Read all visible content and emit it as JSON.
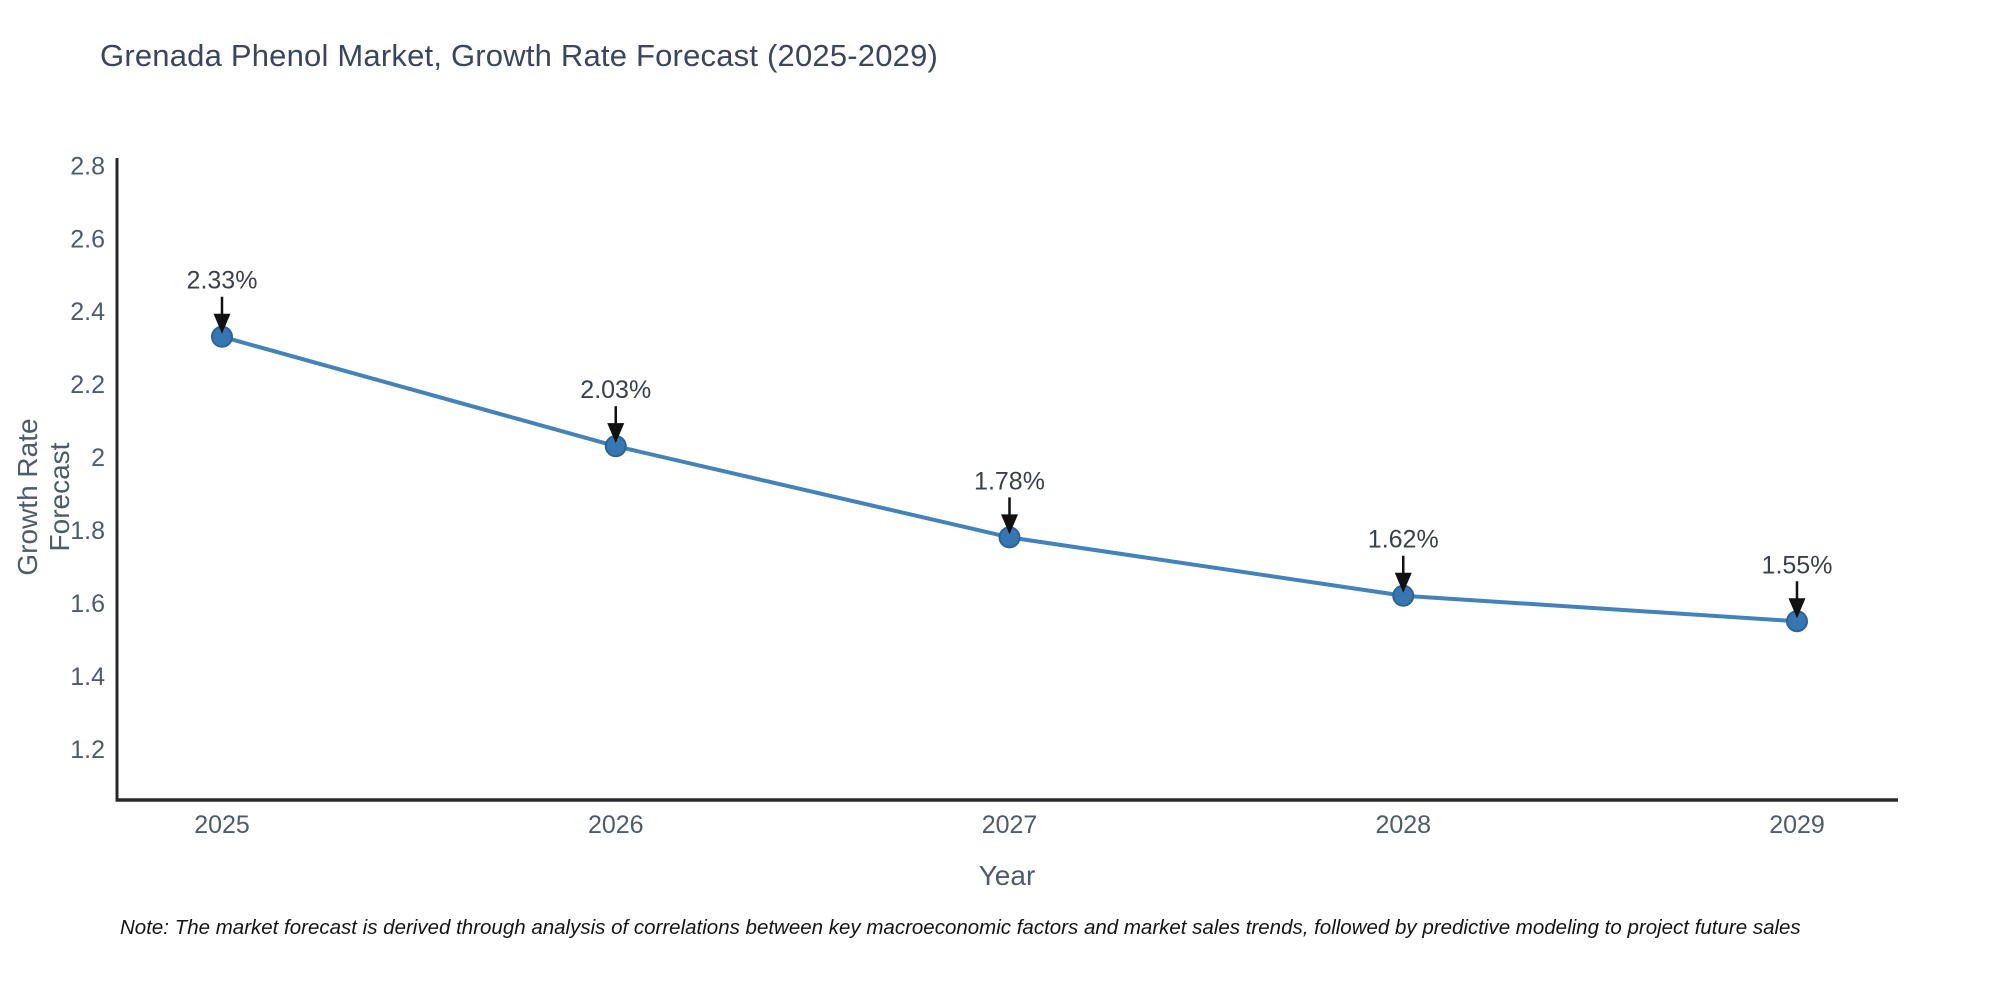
{
  "title": "Grenada Phenol Market, Growth Rate Forecast (2025-2029)",
  "note": "Note: The market forecast is derived through analysis of correlations between key macroeconomic factors and market sales trends, followed by predictive modeling to project future sales",
  "chart_data": {
    "type": "line",
    "title": "Grenada Phenol Market, Growth Rate Forecast (2025-2029)",
    "xlabel": "Year",
    "ylabel": "Growth Rate Forecast",
    "categories": [
      "2025",
      "2026",
      "2027",
      "2028",
      "2029"
    ],
    "values": [
      2.33,
      2.03,
      1.78,
      1.62,
      1.55
    ],
    "point_labels": [
      "2.33%",
      "2.03%",
      "1.78%",
      "1.62%",
      "1.55%"
    ],
    "ylim": [
      1.06,
      2.82
    ],
    "yticks": [
      1.2,
      1.4,
      1.6,
      1.8,
      2,
      2.2,
      2.4,
      2.6,
      2.8
    ],
    "ytick_labels": [
      "1.2",
      "1.4",
      "1.6",
      "1.8",
      "2",
      "2.2",
      "2.4",
      "2.6",
      "2.8"
    ],
    "grid": false,
    "legend_position": "none",
    "colors": {
      "line": "#4383b9",
      "marker_fill": "#3776b0",
      "marker_edge": "#2d639a",
      "axis_line": "#26282b",
      "tick_text": "#4c5b6e",
      "title_text": "#3a455e",
      "annotation_text": "#39414d",
      "arrow": "#111111",
      "background": "#ffffff"
    }
  }
}
